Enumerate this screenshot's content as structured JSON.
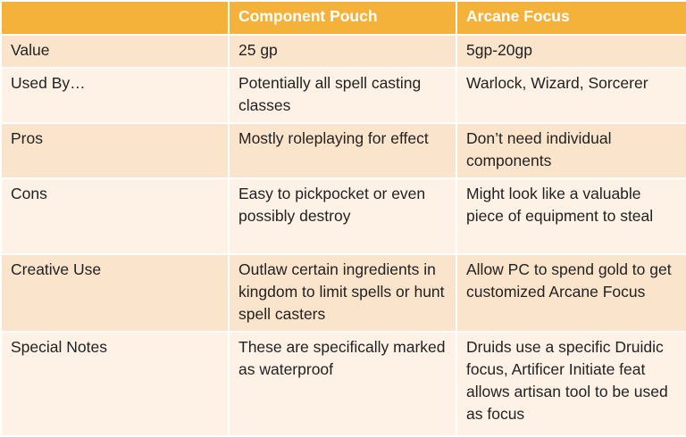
{
  "table": {
    "columns": [
      "Component Pouch",
      "Arcane Focus"
    ],
    "rows": [
      [
        "Value",
        "25 gp",
        "5gp-20gp"
      ],
      [
        "Used By…",
        "Potentially all spell casting classes",
        "Warlock, Wizard, Sorcerer"
      ],
      [
        "Pros",
        "Mostly roleplaying for effect",
        "Don’t need individual components"
      ],
      [
        "Cons",
        "Easy to pickpocket or even possibly destroy",
        "Might look like a valuable piece of equipment to steal"
      ],
      [
        "Creative Use",
        "Outlaw certain ingredients in kingdom to limit spells or hunt spell casters",
        "Allow PC to spend gold to get customized Arcane Focus"
      ],
      [
        "Special Notes",
        "These are specifically marked as waterproof",
        "Druids use a specific Druidic focus, Artificer Initiate feat allows artisan tool to be used as focus"
      ]
    ]
  }
}
